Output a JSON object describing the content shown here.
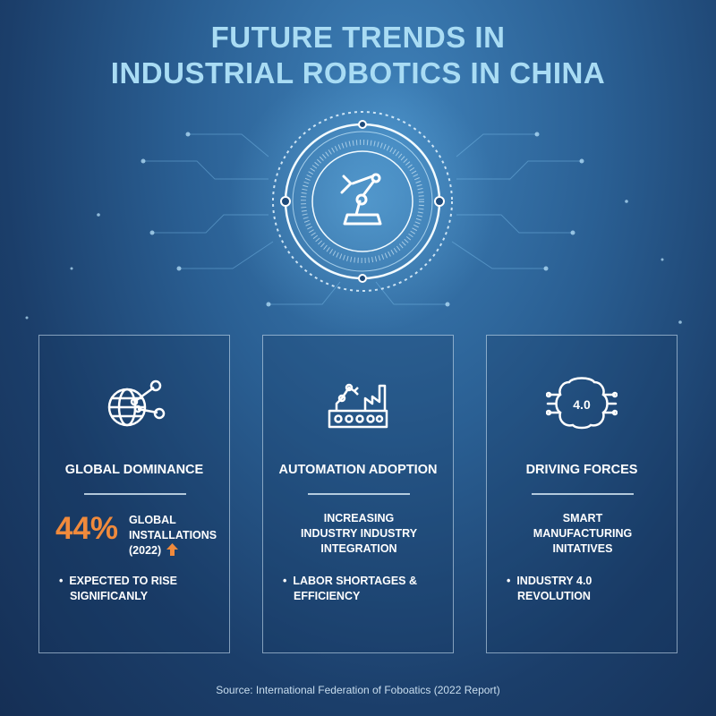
{
  "title": {
    "line1": "FUTURE TRENDS IN",
    "line2": "INDUSTRIAL ROBOTICS IN CHINA"
  },
  "hero": {
    "icon": "robotic-arm-circuit-icon"
  },
  "cards": [
    {
      "icon": "globe-network-icon",
      "heading": "GLOBAL DOMINANCE",
      "stat_value": "44%",
      "stat_label_1": "GLOBAL",
      "stat_label_2": "INSTALLATIONS",
      "stat_label_3": "(2022)",
      "stat_trend_icon": "arrow-up-icon",
      "bullet": "EXPECTED TO RISE SIGNIFICANLY"
    },
    {
      "icon": "factory-robot-icon",
      "heading": "AUTOMATION ADOPTION",
      "desc_1": "INCREASING",
      "desc_2": "INDUSTRY INDUSTRY",
      "desc_3": "INTEGRATION",
      "bullet": "LABOR SHORTAGES & EFFICIENCY"
    },
    {
      "icon": "brain-chip-icon",
      "icon_text": "4.0",
      "heading": "DRIVING FORCES",
      "desc_1": "SMART",
      "desc_2": "MANUFACTURING",
      "desc_3": "INITATIVES",
      "bullet": "INDUSTRY 4.0 REVOLUTION"
    }
  ],
  "colors": {
    "accent": "#f08a3c",
    "title": "#a9dcf4",
    "background": "#1b3e6a"
  },
  "source": "Source: International Federation of Foboatics (2022 Report)"
}
